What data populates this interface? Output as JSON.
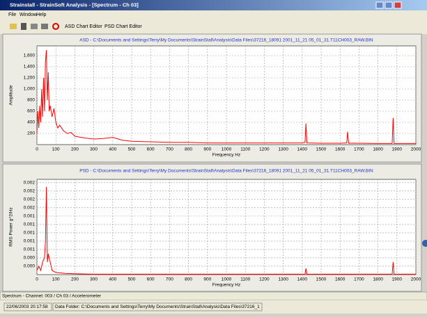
{
  "window": {
    "title": "Strainstall - StrainSoft Analysis - [Spectrum - Ch 03]",
    "menu": [
      "File",
      "Window",
      "Help"
    ],
    "toolbar": [
      "ASD Chart Editor",
      "PSD Chart Editor"
    ],
    "status": "Spectrum - Channel: 003 / Ch 03 / Accelerometer",
    "footer": [
      "22/06/2003 20:17:58",
      "Data Folder: C:\\Documents and Settings\\Terry\\My Documents\\StrainStall\\Analysis\\Data Files\\37216_1"
    ]
  },
  "chart_data": [
    {
      "type": "line",
      "title": "ASD - C:\\Documents and Settings\\Terry\\My Documents\\StrainStall\\Analysis\\Data Files\\37216_18091 2001_11_21 05_01_31.T11CH003_RAW.BIN",
      "x_label": "Frequency Hz",
      "y_label": "Amplitude",
      "color": "#ff0000",
      "grid": true,
      "xlim": [
        0,
        2000
      ],
      "xticks": [
        0,
        100,
        200,
        300,
        400,
        500,
        600,
        700,
        800,
        900,
        1000,
        1100,
        1200,
        1300,
        1400,
        1500,
        1600,
        1700,
        1800,
        1900,
        2000
      ],
      "ylim": [
        0,
        1775
      ],
      "yticks": [
        200,
        400,
        600,
        800,
        {
          "value": 1000,
          "label": "1,000"
        },
        {
          "value": 1200,
          "label": "1,200"
        },
        {
          "value": 1400,
          "label": "1,400"
        },
        {
          "value": 1600,
          "label": "1,600"
        }
      ],
      "x": [
        0,
        5,
        10,
        15,
        20,
        25,
        30,
        35,
        40,
        45,
        50,
        55,
        60,
        65,
        70,
        80,
        90,
        100,
        110,
        120,
        140,
        160,
        180,
        200,
        250,
        300,
        350,
        400,
        450,
        500,
        600,
        700,
        800,
        900,
        1000,
        1100,
        1200,
        1300,
        1400,
        1415,
        1420,
        1425,
        1500,
        1600,
        1635,
        1640,
        1645,
        1700,
        1800,
        1875,
        1880,
        1885,
        2000
      ],
      "values": [
        200,
        600,
        300,
        700,
        400,
        1000,
        500,
        1200,
        600,
        1500,
        1700,
        800,
        1300,
        600,
        700,
        500,
        650,
        400,
        300,
        350,
        250,
        200,
        220,
        150,
        120,
        100,
        110,
        130,
        80,
        60,
        50,
        40,
        40,
        30,
        30,
        30,
        30,
        30,
        30,
        40,
        380,
        30,
        25,
        25,
        30,
        230,
        25,
        25,
        20,
        20,
        480,
        20,
        20
      ]
    },
    {
      "type": "line",
      "title": "PSD - C:\\Documents and Settings\\Terry\\My Documents\\StrainStall\\Analysis\\Data Files\\37216_18091 2001_11_21 05_01_31.T11CH003_RAW.BIN",
      "x_label": "Frequency Hz",
      "y_label": "RMS Power g^2/Hz",
      "color": "#ff0000",
      "grid": true,
      "xlim": [
        0,
        2000
      ],
      "xticks": [
        0,
        100,
        200,
        300,
        400,
        500,
        600,
        700,
        800,
        900,
        1000,
        1100,
        1200,
        1300,
        1400,
        1500,
        1600,
        1700,
        1800,
        1900,
        2000
      ],
      "ylim": [
        0,
        0.00228
      ],
      "yticks": [
        {
          "value": 0.0002,
          "label": "0.000"
        },
        {
          "value": 0.0004,
          "label": "0.000"
        },
        {
          "value": 0.0006,
          "label": "0.001"
        },
        {
          "value": 0.0008,
          "label": "0.001"
        },
        {
          "value": 0.001,
          "label": "0.001"
        },
        {
          "value": 0.0012,
          "label": "0.001"
        },
        {
          "value": 0.0014,
          "label": "0.001"
        },
        {
          "value": 0.0016,
          "label": "0.002"
        },
        {
          "value": 0.0018,
          "label": "0.002"
        },
        {
          "value": 0.002,
          "label": "0.002"
        },
        {
          "value": 0.0022,
          "label": "0.002"
        }
      ],
      "x": [
        0,
        10,
        20,
        30,
        40,
        45,
        50,
        55,
        60,
        80,
        100,
        150,
        200,
        300,
        500,
        1000,
        1415,
        1420,
        1425,
        1875,
        1880,
        1885,
        2000
      ],
      "values": [
        0.0001,
        0.0002,
        0.0001,
        0.0003,
        0.0004,
        0.0008,
        0.0021,
        0.0003,
        0.0005,
        0.0001,
        5e-05,
        3e-05,
        2e-05,
        1e-05,
        1e-05,
        1e-05,
        1e-05,
        0.00015,
        1e-05,
        1e-05,
        0.0003,
        1e-05,
        1e-05
      ]
    }
  ]
}
